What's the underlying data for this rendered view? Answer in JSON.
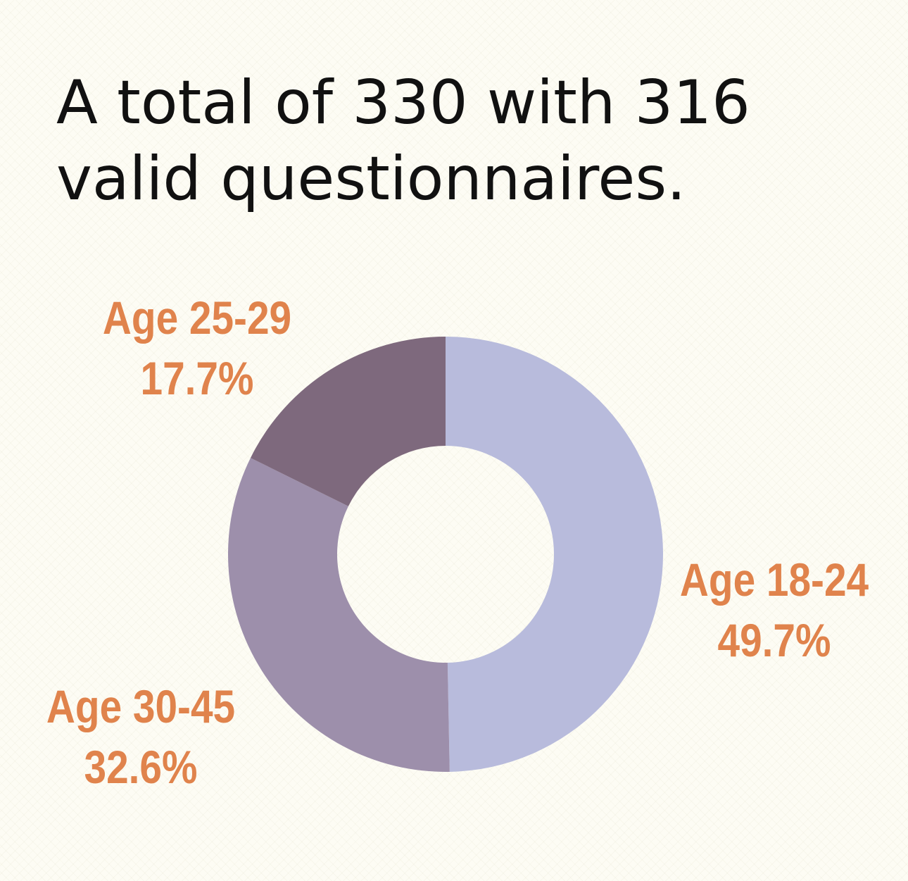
{
  "headline": {
    "line1": "A total of 330  with 316",
    "line2": "valid questionnaires."
  },
  "colors": {
    "label": "#e0834c",
    "background": "#fdfcf4"
  },
  "chart_data": {
    "type": "pie",
    "style": "donut",
    "title": "",
    "slices": [
      {
        "name": "Age 18-24",
        "value": 49.7,
        "value_label": "49.7%",
        "color": "#b8bbdc"
      },
      {
        "name": "Age 30-45",
        "value": 32.6,
        "value_label": "32.6%",
        "color": "#9d8fab"
      },
      {
        "name": "Age 25-29",
        "value": 17.7,
        "value_label": "17.7%",
        "color": "#7e697d"
      }
    ],
    "legend": "none"
  }
}
